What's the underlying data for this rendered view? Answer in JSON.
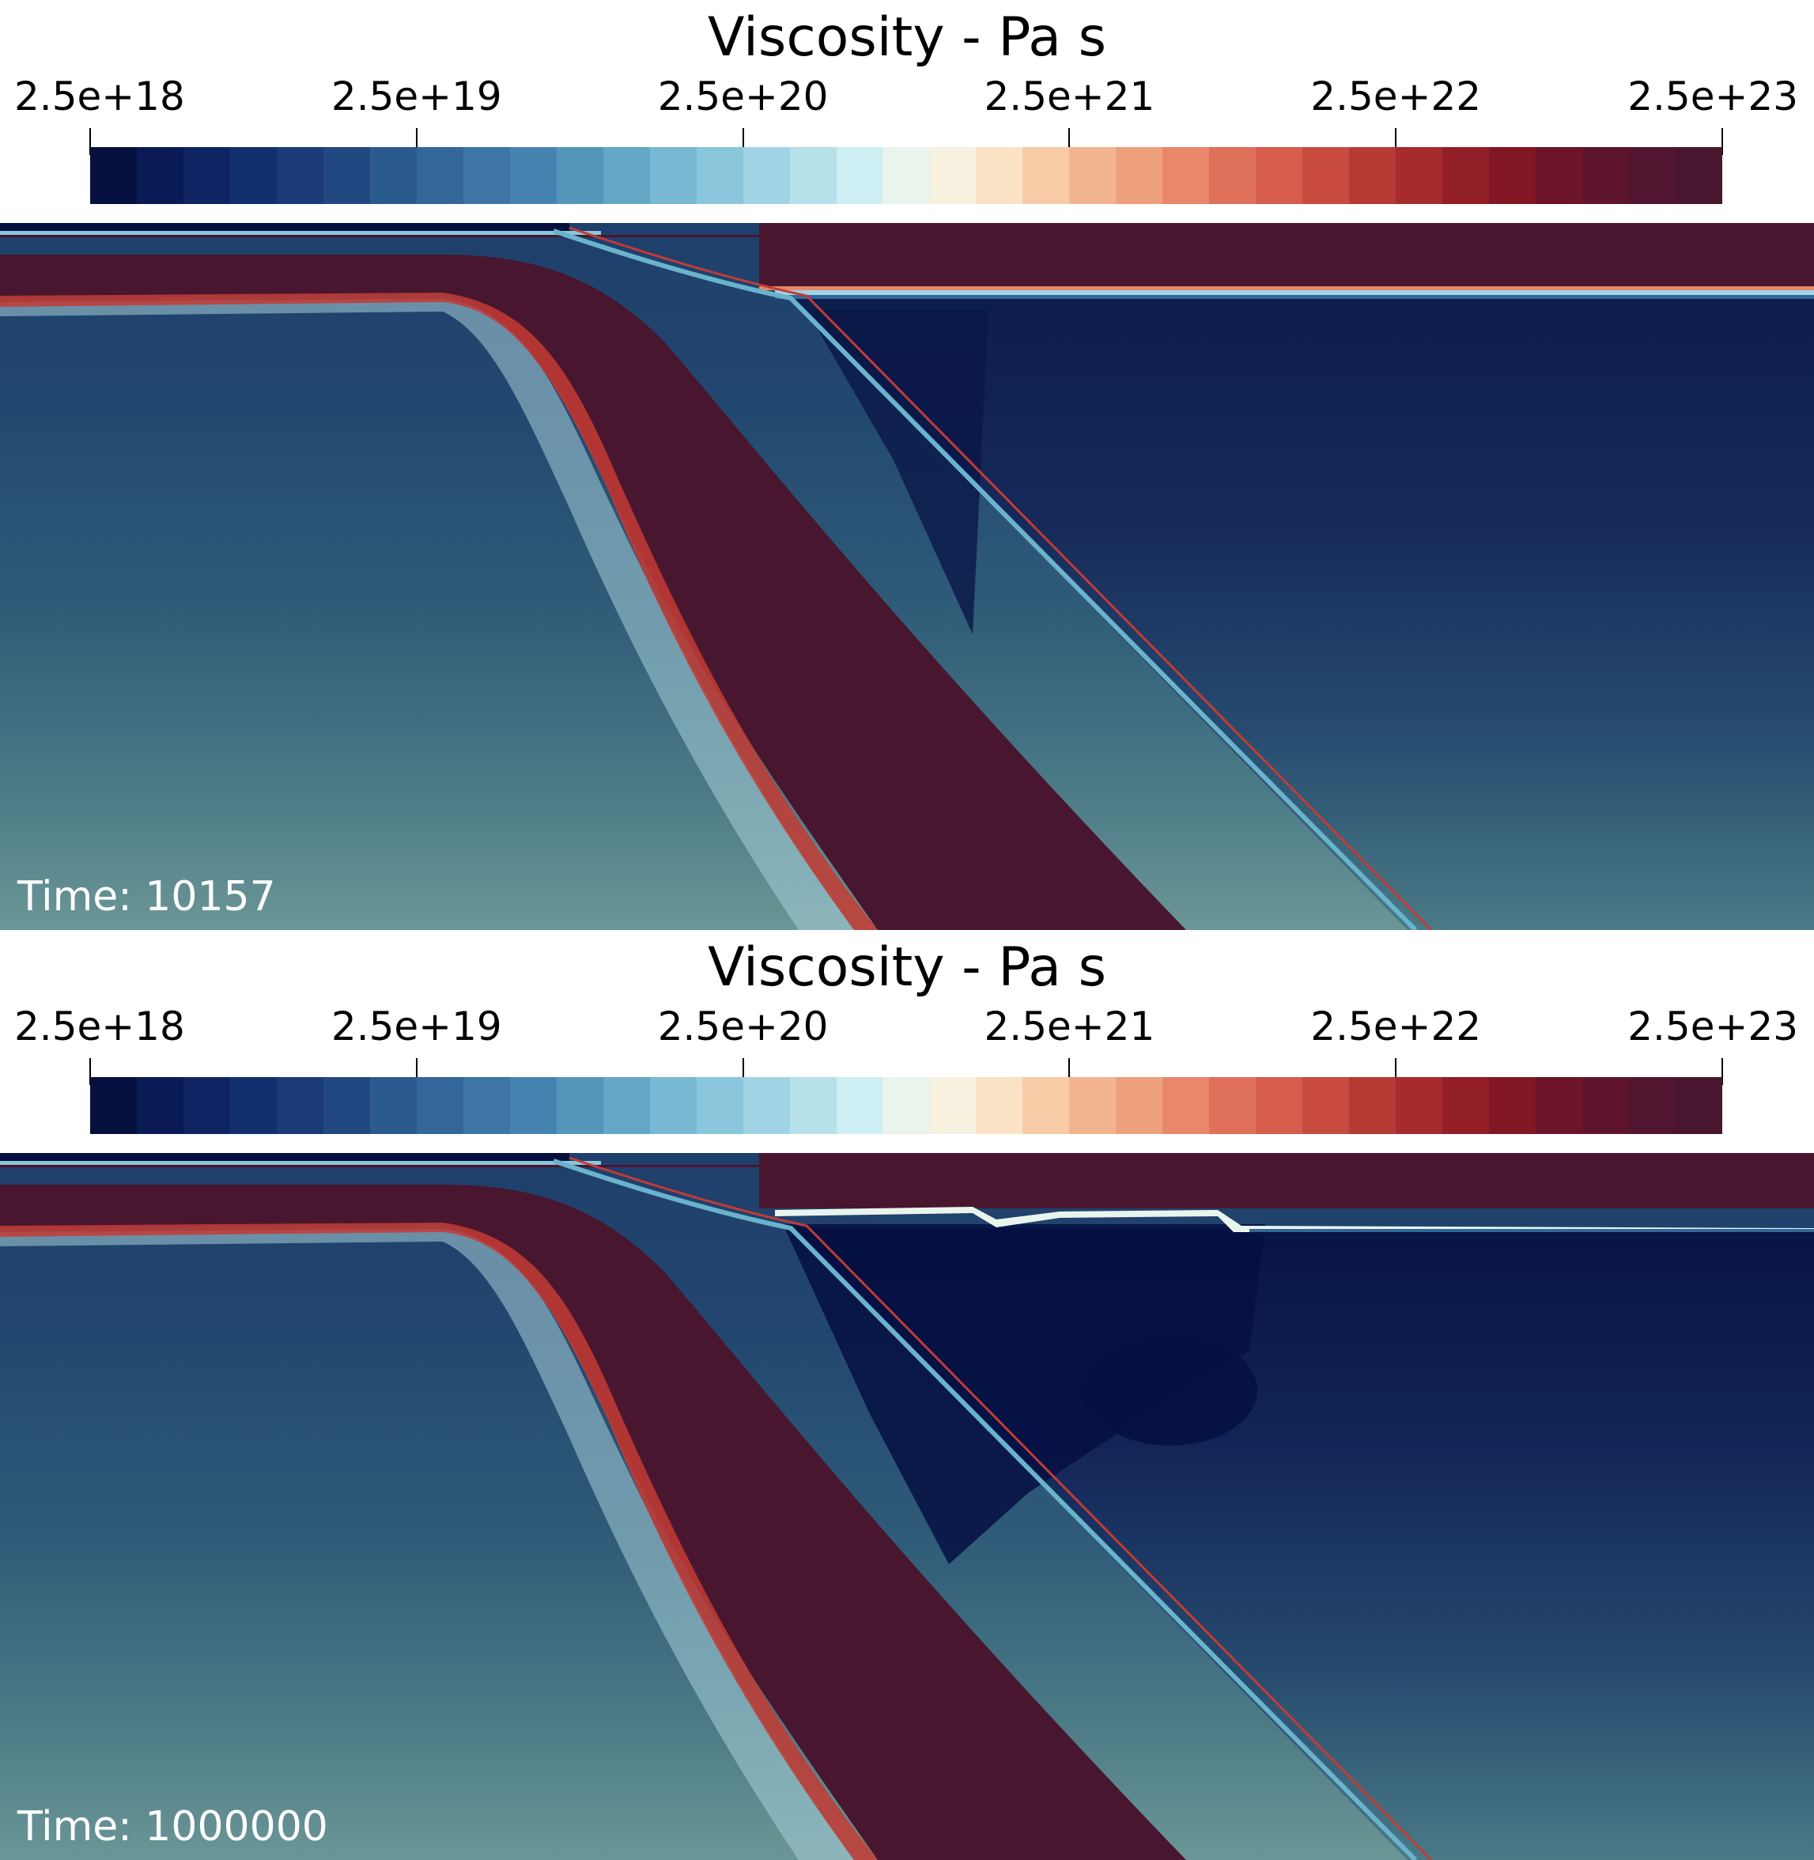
{
  "panels": [
    {
      "title": "Viscosity - Pa s",
      "time_label": "Time: 10157"
    },
    {
      "title": "Viscosity - Pa s",
      "time_label": "Time: 1000000"
    }
  ],
  "colorbar": {
    "tick_labels": [
      "2.5e+18",
      "2.5e+19",
      "2.5e+20",
      "2.5e+21",
      "2.5e+22",
      "2.5e+23"
    ],
    "colors": [
      "#05103f",
      "#0a1a55",
      "#0f2462",
      "#13306e",
      "#1a3a78",
      "#224882",
      "#2a5a8e",
      "#33679a",
      "#3d76a6",
      "#4683b0",
      "#5496ba",
      "#64a7c6",
      "#78b8d2",
      "#8ac6dc",
      "#a0d4e4",
      "#b6e0ea",
      "#cdeef2",
      "#e9f4ec",
      "#f7f1e0",
      "#fae2c4",
      "#f6cba6",
      "#f2b48e",
      "#eea07c",
      "#e8876a",
      "#df705a",
      "#d65c4c",
      "#c94a3e",
      "#b73a34",
      "#a52b2c",
      "#921e27",
      "#811724",
      "#6e1428",
      "#5e142c",
      "#521530",
      "#48162e"
    ]
  }
}
